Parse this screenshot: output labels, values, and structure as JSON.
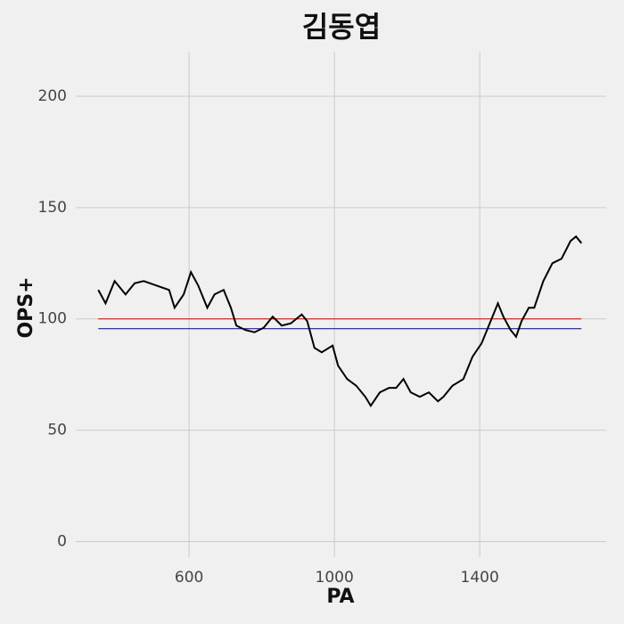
{
  "chart_data": {
    "type": "line",
    "title": "김동엽",
    "x_label": "PA",
    "y_label": "OPS+",
    "x": [
      350,
      370,
      395,
      425,
      450,
      475,
      510,
      545,
      560,
      585,
      605,
      625,
      650,
      670,
      695,
      715,
      730,
      755,
      780,
      805,
      830,
      855,
      880,
      910,
      925,
      945,
      965,
      995,
      1010,
      1035,
      1060,
      1085,
      1100,
      1125,
      1150,
      1170,
      1190,
      1210,
      1235,
      1260,
      1285,
      1300,
      1325,
      1355,
      1380,
      1405,
      1435,
      1450,
      1465,
      1485,
      1500,
      1515,
      1535,
      1550,
      1575,
      1600,
      1625,
      1650,
      1665,
      1680
    ],
    "series": [
      {
        "name": "OPS+",
        "color": "#000000",
        "values": [
          113,
          107,
          117,
          111,
          116,
          117,
          115,
          113,
          105,
          111,
          121,
          115,
          105,
          111,
          113,
          105,
          97,
          95,
          94,
          96,
          101,
          97,
          98,
          102,
          99,
          87,
          85,
          88,
          79,
          73,
          70,
          65,
          61,
          67,
          69,
          69,
          73,
          67,
          65,
          67,
          63,
          65,
          70,
          73,
          83,
          89,
          101,
          107,
          101,
          95,
          92,
          99,
          105,
          105,
          117,
          125,
          127,
          135,
          137,
          134
        ]
      }
    ],
    "reference_lines": [
      {
        "value": 100,
        "color": "#cc0000"
      },
      {
        "value": 95.6,
        "color": "#000080"
      }
    ],
    "xlim": [
      288,
      1748
    ],
    "ylim": [
      -7,
      220
    ],
    "xticks": [
      600,
      1000,
      1400
    ],
    "yticks": [
      0,
      50,
      100,
      150,
      200
    ],
    "grid": true
  }
}
